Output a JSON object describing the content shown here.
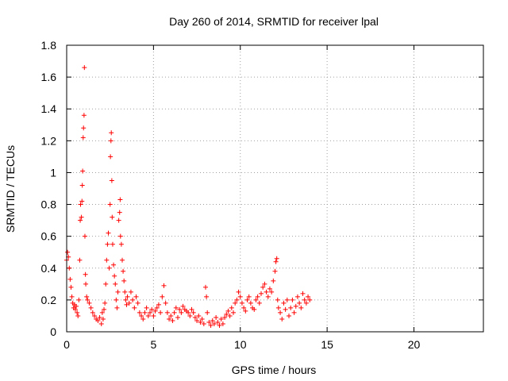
{
  "chart_data": {
    "type": "scatter",
    "title": "Day 260 of 2014, SRMTID for receiver lpal",
    "xlabel": "GPS time / hours",
    "ylabel": "SRMTID / TECUs",
    "xlim": [
      0,
      24
    ],
    "ylim": [
      0,
      1.8
    ],
    "xticks": [
      0,
      5,
      10,
      15,
      20
    ],
    "xtick_labels": [
      "0",
      "5",
      "10",
      "15",
      "20"
    ],
    "yticks": [
      0,
      0.2,
      0.4,
      0.6,
      0.8,
      1.0,
      1.2,
      1.4,
      1.6,
      1.8
    ],
    "ytick_labels": [
      "0",
      "0.2",
      "0.4",
      "0.6",
      "0.8",
      "1",
      "1.2",
      "1.4",
      "1.6",
      "1.8"
    ],
    "grid": true,
    "marker": "+",
    "color": "#ff0000",
    "series": [
      {
        "name": "lpal",
        "points": [
          [
            0.0,
            0.45
          ],
          [
            0.05,
            0.5
          ],
          [
            0.1,
            0.47
          ],
          [
            0.15,
            0.4
          ],
          [
            0.2,
            0.33
          ],
          [
            0.25,
            0.28
          ],
          [
            0.3,
            0.22
          ],
          [
            0.35,
            0.18
          ],
          [
            0.4,
            0.15
          ],
          [
            0.45,
            0.17
          ],
          [
            0.5,
            0.14
          ],
          [
            0.55,
            0.16
          ],
          [
            0.6,
            0.12
          ],
          [
            0.65,
            0.1
          ],
          [
            0.7,
            0.2
          ],
          [
            0.75,
            0.45
          ],
          [
            0.78,
            0.7
          ],
          [
            0.8,
            0.8
          ],
          [
            0.85,
            0.72
          ],
          [
            0.88,
            0.82
          ],
          [
            0.9,
            0.92
          ],
          [
            0.92,
            1.01
          ],
          [
            0.95,
            1.22
          ],
          [
            0.97,
            1.28
          ],
          [
            1.0,
            1.36
          ],
          [
            1.02,
            1.66
          ],
          [
            1.05,
            0.6
          ],
          [
            1.08,
            0.36
          ],
          [
            1.1,
            0.3
          ],
          [
            1.15,
            0.22
          ],
          [
            1.2,
            0.2
          ],
          [
            1.3,
            0.18
          ],
          [
            1.4,
            0.15
          ],
          [
            1.5,
            0.12
          ],
          [
            1.6,
            0.1
          ],
          [
            1.7,
            0.08
          ],
          [
            1.8,
            0.07
          ],
          [
            1.9,
            0.09
          ],
          [
            2.0,
            0.05
          ],
          [
            2.05,
            0.12
          ],
          [
            2.1,
            0.08
          ],
          [
            2.15,
            0.14
          ],
          [
            2.2,
            0.18
          ],
          [
            2.25,
            0.3
          ],
          [
            2.3,
            0.45
          ],
          [
            2.35,
            0.55
          ],
          [
            2.4,
            0.62
          ],
          [
            2.45,
            0.4
          ],
          [
            2.5,
            0.8
          ],
          [
            2.52,
            1.1
          ],
          [
            2.55,
            1.2
          ],
          [
            2.57,
            1.25
          ],
          [
            2.6,
            0.95
          ],
          [
            2.62,
            0.72
          ],
          [
            2.65,
            0.55
          ],
          [
            2.7,
            0.42
          ],
          [
            2.75,
            0.35
          ],
          [
            2.8,
            0.3
          ],
          [
            2.85,
            0.2
          ],
          [
            2.9,
            0.15
          ],
          [
            2.95,
            0.25
          ],
          [
            3.0,
            0.7
          ],
          [
            3.05,
            0.75
          ],
          [
            3.08,
            0.83
          ],
          [
            3.1,
            0.6
          ],
          [
            3.15,
            0.55
          ],
          [
            3.2,
            0.45
          ],
          [
            3.25,
            0.38
          ],
          [
            3.3,
            0.32
          ],
          [
            3.35,
            0.25
          ],
          [
            3.4,
            0.2
          ],
          [
            3.45,
            0.17
          ],
          [
            3.5,
            0.22
          ],
          [
            3.6,
            0.18
          ],
          [
            3.7,
            0.25
          ],
          [
            3.8,
            0.2
          ],
          [
            3.9,
            0.15
          ],
          [
            4.0,
            0.22
          ],
          [
            4.1,
            0.18
          ],
          [
            4.2,
            0.12
          ],
          [
            4.3,
            0.1
          ],
          [
            4.4,
            0.08
          ],
          [
            4.5,
            0.12
          ],
          [
            4.6,
            0.15
          ],
          [
            4.7,
            0.1
          ],
          [
            4.8,
            0.12
          ],
          [
            4.9,
            0.14
          ],
          [
            5.0,
            0.1
          ],
          [
            5.1,
            0.13
          ],
          [
            5.2,
            0.15
          ],
          [
            5.3,
            0.17
          ],
          [
            5.4,
            0.12
          ],
          [
            5.5,
            0.22
          ],
          [
            5.6,
            0.29
          ],
          [
            5.7,
            0.18
          ],
          [
            5.8,
            0.12
          ],
          [
            5.9,
            0.08
          ],
          [
            6.0,
            0.1
          ],
          [
            6.1,
            0.07
          ],
          [
            6.2,
            0.12
          ],
          [
            6.3,
            0.15
          ],
          [
            6.4,
            0.09
          ],
          [
            6.5,
            0.14
          ],
          [
            6.6,
            0.12
          ],
          [
            6.7,
            0.16
          ],
          [
            6.8,
            0.14
          ],
          [
            6.9,
            0.13
          ],
          [
            7.0,
            0.12
          ],
          [
            7.1,
            0.1
          ],
          [
            7.2,
            0.14
          ],
          [
            7.3,
            0.12
          ],
          [
            7.4,
            0.09
          ],
          [
            7.5,
            0.07
          ],
          [
            7.6,
            0.1
          ],
          [
            7.7,
            0.06
          ],
          [
            7.8,
            0.08
          ],
          [
            7.9,
            0.05
          ],
          [
            8.0,
            0.28
          ],
          [
            8.05,
            0.22
          ],
          [
            8.1,
            0.12
          ],
          [
            8.2,
            0.06
          ],
          [
            8.3,
            0.04
          ],
          [
            8.4,
            0.07
          ],
          [
            8.5,
            0.05
          ],
          [
            8.6,
            0.09
          ],
          [
            8.7,
            0.06
          ],
          [
            8.8,
            0.04
          ],
          [
            8.9,
            0.08
          ],
          [
            9.0,
            0.05
          ],
          [
            9.1,
            0.09
          ],
          [
            9.2,
            0.11
          ],
          [
            9.3,
            0.13
          ],
          [
            9.4,
            0.1
          ],
          [
            9.5,
            0.15
          ],
          [
            9.6,
            0.12
          ],
          [
            9.7,
            0.18
          ],
          [
            9.8,
            0.2
          ],
          [
            9.9,
            0.25
          ],
          [
            10.0,
            0.22
          ],
          [
            10.1,
            0.18
          ],
          [
            10.2,
            0.15
          ],
          [
            10.3,
            0.13
          ],
          [
            10.4,
            0.2
          ],
          [
            10.5,
            0.22
          ],
          [
            10.6,
            0.18
          ],
          [
            10.7,
            0.15
          ],
          [
            10.8,
            0.14
          ],
          [
            10.9,
            0.2
          ],
          [
            11.0,
            0.22
          ],
          [
            11.1,
            0.18
          ],
          [
            11.2,
            0.24
          ],
          [
            11.3,
            0.28
          ],
          [
            11.4,
            0.3
          ],
          [
            11.5,
            0.25
          ],
          [
            11.6,
            0.22
          ],
          [
            11.7,
            0.27
          ],
          [
            11.8,
            0.25
          ],
          [
            11.9,
            0.32
          ],
          [
            12.0,
            0.38
          ],
          [
            12.05,
            0.44
          ],
          [
            12.1,
            0.46
          ],
          [
            12.15,
            0.2
          ],
          [
            12.2,
            0.15
          ],
          [
            12.3,
            0.12
          ],
          [
            12.4,
            0.08
          ],
          [
            12.5,
            0.18
          ],
          [
            12.6,
            0.14
          ],
          [
            12.7,
            0.2
          ],
          [
            12.8,
            0.1
          ],
          [
            12.9,
            0.15
          ],
          [
            13.0,
            0.2
          ],
          [
            13.1,
            0.12
          ],
          [
            13.2,
            0.16
          ],
          [
            13.3,
            0.22
          ],
          [
            13.4,
            0.18
          ],
          [
            13.5,
            0.15
          ],
          [
            13.6,
            0.24
          ],
          [
            13.7,
            0.2
          ],
          [
            13.8,
            0.18
          ],
          [
            13.9,
            0.22
          ],
          [
            14.0,
            0.2
          ]
        ]
      }
    ]
  }
}
